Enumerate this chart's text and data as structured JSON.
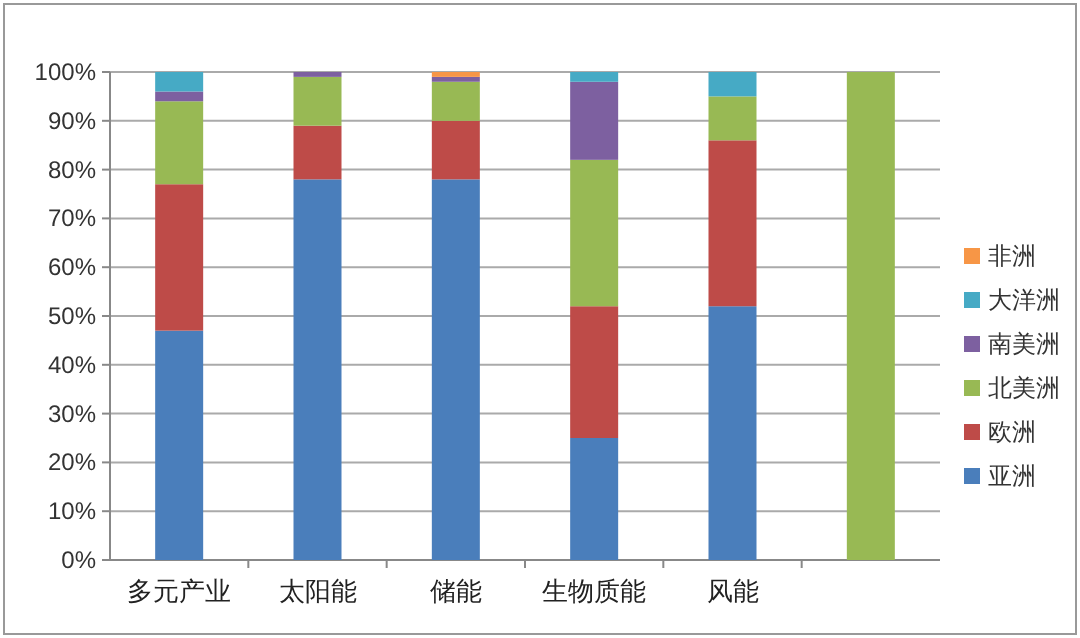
{
  "chart_data": {
    "type": "bar",
    "stacked": true,
    "categories": [
      "多元产业",
      "太阳能",
      "储能",
      "生物质能",
      "风能",
      null
    ],
    "series": [
      {
        "name": "亚洲",
        "color": "#4a7ebb",
        "values": [
          47,
          78,
          78,
          25,
          52,
          0
        ]
      },
      {
        "name": "欧洲",
        "color": "#be4b48",
        "values": [
          30,
          11,
          12,
          27,
          34,
          0
        ]
      },
      {
        "name": "北美洲",
        "color": "#98b954",
        "values": [
          17,
          10,
          8,
          30,
          9,
          100
        ]
      },
      {
        "name": "南美洲",
        "color": "#7d60a0",
        "values": [
          2,
          1,
          1,
          16,
          0,
          0
        ]
      },
      {
        "name": "大洋洲",
        "color": "#46aac5",
        "values": [
          4,
          0,
          0,
          2,
          5,
          0
        ]
      },
      {
        "name": "非洲",
        "color": "#f79646",
        "values": [
          0,
          0,
          1,
          0,
          0,
          0
        ]
      }
    ],
    "ylim": [
      0,
      100
    ],
    "yticks": [
      {
        "value": 0,
        "label": "0%"
      },
      {
        "value": 10,
        "label": "10%"
      },
      {
        "value": 20,
        "label": "20%"
      },
      {
        "value": 30,
        "label": "30%"
      },
      {
        "value": 40,
        "label": "40%"
      },
      {
        "value": 50,
        "label": "50%"
      },
      {
        "value": 60,
        "label": "60%"
      },
      {
        "value": 70,
        "label": "70%"
      },
      {
        "value": 80,
        "label": "80%"
      },
      {
        "value": 90,
        "label": "90%"
      },
      {
        "value": 100,
        "label": "100%"
      }
    ],
    "grid": "y",
    "legend": "right"
  }
}
